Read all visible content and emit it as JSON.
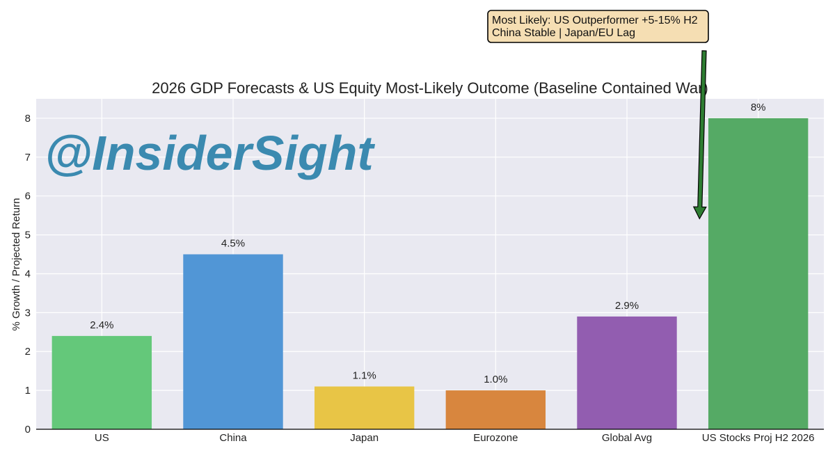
{
  "chart_data": {
    "type": "bar",
    "title": "2026 GDP Forecasts & US Equity Most-Likely Outcome (Baseline Contained War)",
    "xlabel": "",
    "ylabel": "% Growth / Projected Return",
    "ylim": [
      0,
      8.5
    ],
    "yticks": [
      "0",
      "1",
      "2",
      "3",
      "4",
      "5",
      "6",
      "7",
      "8"
    ],
    "grid": true,
    "categories": [
      "US",
      "China",
      "Japan",
      "Eurozone",
      "Global Avg",
      "US Stocks Proj H2 2026"
    ],
    "values": [
      2.4,
      4.5,
      1.1,
      1.0,
      2.9,
      8
    ],
    "data_labels": [
      "2.4%",
      "4.5%",
      "1.1%",
      "1.0%",
      "2.9%",
      "8%"
    ],
    "colors": [
      "#64c87a",
      "#5196d6",
      "#e8c546",
      "#d8863e",
      "#925db0",
      "#55aa65"
    ],
    "annotation": {
      "lines": [
        "Most Likely: US Outperformer +5-15% H2",
        "China Stable | Japan/EU Lag"
      ],
      "box_color": "#f5deb3",
      "arrow_color": "#2e7d32",
      "target_value": 5.2
    },
    "watermark": "@InsiderSight",
    "colors_theme": {
      "plot_bg": "#e9e9f1",
      "grid": "#ffffff",
      "watermark": "#3b8ab0"
    }
  }
}
